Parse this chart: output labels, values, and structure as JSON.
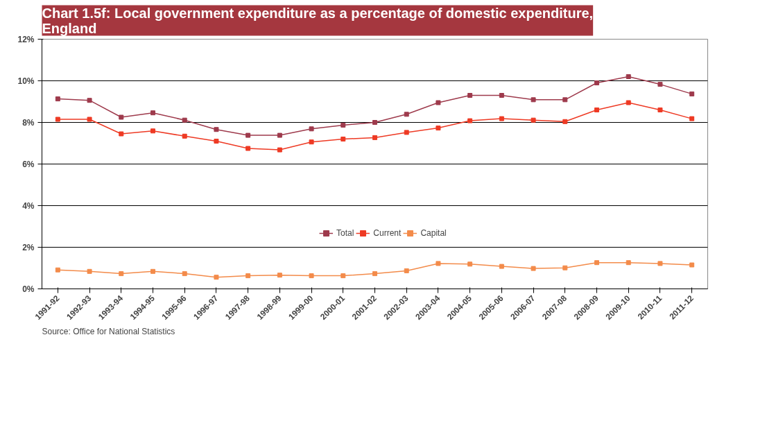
{
  "chart_data": {
    "type": "line",
    "title": "Chart 1.5f: Local government expenditure as a percentage of domestic expenditure, England",
    "categories": [
      "1991-92",
      "1992-93",
      "1993-94",
      "1994-95",
      "1995-96",
      "1996-97",
      "1997-98",
      "1998-99",
      "1999-00",
      "2000-01",
      "2001-02",
      "2002-03",
      "2003-04",
      "2004-05",
      "2005-06",
      "2006-07",
      "2007-08",
      "2008-09",
      "2009-10",
      "2010-11",
      "2011-12"
    ],
    "series": [
      {
        "name": "Total",
        "color": "#9e3a4c",
        "values": [
          9.13,
          9.06,
          8.25,
          8.46,
          8.11,
          7.66,
          7.38,
          7.38,
          7.69,
          7.87,
          8.0,
          8.39,
          8.95,
          9.3,
          9.3,
          9.09,
          9.09,
          9.9,
          10.2,
          9.83,
          9.37
        ]
      },
      {
        "name": "Current",
        "color": "#ee3a24",
        "values": [
          8.15,
          8.15,
          7.45,
          7.59,
          7.34,
          7.1,
          6.75,
          6.68,
          7.06,
          7.2,
          7.27,
          7.52,
          7.73,
          8.08,
          8.18,
          8.11,
          8.04,
          8.6,
          8.95,
          8.6,
          8.18
        ]
      },
      {
        "name": "Capital",
        "color": "#f38b4a",
        "values": [
          0.91,
          0.84,
          0.73,
          0.84,
          0.73,
          0.56,
          0.63,
          0.66,
          0.63,
          0.63,
          0.73,
          0.87,
          1.22,
          1.19,
          1.08,
          0.98,
          1.01,
          1.26,
          1.26,
          1.22,
          1.15
        ]
      }
    ],
    "ylim": [
      0,
      12
    ],
    "yticks": [
      {
        "value": 0,
        "label": "0%"
      },
      {
        "value": 2,
        "label": "2%"
      },
      {
        "value": 4,
        "label": "4%"
      },
      {
        "value": 6,
        "label": "6%"
      },
      {
        "value": 8,
        "label": "8%"
      },
      {
        "value": 10,
        "label": "10%"
      },
      {
        "value": 12,
        "label": "12%"
      }
    ],
    "grid": "y",
    "legend": "bottom",
    "marker": "square",
    "line_style": "solid",
    "annotations": [
      "Source: Office for National Statistics"
    ]
  }
}
